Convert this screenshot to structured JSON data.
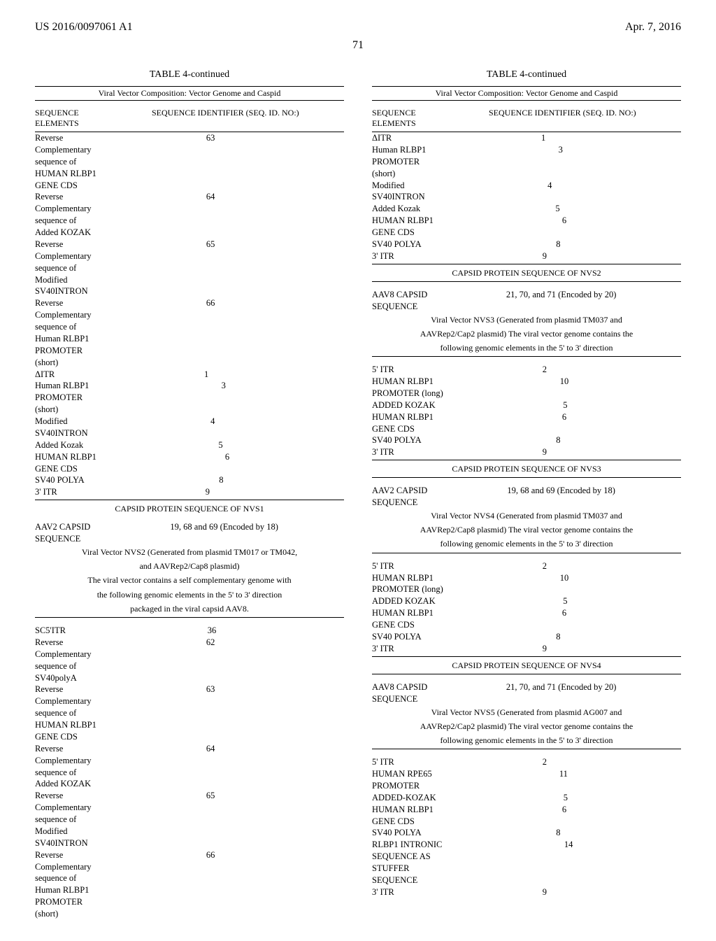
{
  "header": {
    "patent_number": "US 2016/0097061 A1",
    "date": "Apr. 7, 2016",
    "page_number": "71"
  },
  "left_column": {
    "table_title": "TABLE 4-continued",
    "table_subtitle": "Viral Vector Composition: Vector Genome and Caspid",
    "header_left_1": "SEQUENCE",
    "header_left_2": "ELEMENTS",
    "header_right": "SEQUENCE IDENTIFIER (SEQ. ID. NO:)",
    "rows_a": [
      {
        "l": "Reverse",
        "r": "63"
      },
      {
        "l": "Complementary",
        "r": ""
      },
      {
        "l": "sequence of",
        "r": ""
      },
      {
        "l": "HUMAN RLBP1",
        "r": ""
      },
      {
        "l": "GENE CDS",
        "r": ""
      },
      {
        "l": "Reverse",
        "r": "64"
      },
      {
        "l": "Complementary",
        "r": ""
      },
      {
        "l": "sequence of",
        "r": ""
      },
      {
        "l": "Added KOZAK",
        "r": ""
      },
      {
        "l": "Reverse",
        "r": "65"
      },
      {
        "l": "Complementary",
        "r": ""
      },
      {
        "l": "sequence of",
        "r": ""
      },
      {
        "l": "Modified",
        "r": ""
      },
      {
        "l": "SV40INTRON",
        "r": ""
      },
      {
        "l": "Reverse",
        "r": "66"
      },
      {
        "l": "Complementary",
        "r": ""
      },
      {
        "l": "sequence of",
        "r": ""
      },
      {
        "l": "Human RLBP1",
        "r": ""
      },
      {
        "l": "PROMOTER",
        "r": ""
      },
      {
        "l": "(short)",
        "r": ""
      },
      {
        "l": "ΔITR",
        "r": "1"
      },
      {
        "l": "Human RLBP1",
        "r": "3"
      },
      {
        "l": "PROMOTER",
        "r": ""
      },
      {
        "l": "(short)",
        "r": ""
      },
      {
        "l": "Modified",
        "r": "4"
      },
      {
        "l": "SV40INTRON",
        "r": ""
      },
      {
        "l": "Added Kozak",
        "r": "5"
      },
      {
        "l": "HUMAN RLBP1",
        "r": "6"
      },
      {
        "l": "GENE CDS",
        "r": ""
      },
      {
        "l": "SV40 POLYA",
        "r": "8"
      },
      {
        "l": "3' ITR",
        "r": "9"
      }
    ],
    "capsid_a": "CAPSID PROTEIN SEQUENCE OF NVS1",
    "aav2_row": {
      "l": "AAV2 CAPSID",
      "r": "19, 68 and 69 (Encoded by 18)"
    },
    "aav2_row2": {
      "l": "SEQUENCE",
      "r": ""
    },
    "note_b_1": "Viral Vector NVS2 (Generated from plasmid TM017 or TM042,",
    "note_b_2": "and AAVRep2/Cap8 plasmid)",
    "note_b_3": "The viral vector contains a self complementary genome with",
    "note_b_4": "the following genomic elements in the 5' to 3' direction",
    "note_b_5": "packaged in the viral capsid AAV8.",
    "rows_b": [
      {
        "l": "SC5'ITR",
        "r": "36"
      },
      {
        "l": "Reverse",
        "r": "62"
      },
      {
        "l": "Complementary",
        "r": ""
      },
      {
        "l": "sequence of",
        "r": ""
      },
      {
        "l": "SV40polyA",
        "r": ""
      },
      {
        "l": "Reverse",
        "r": "63"
      },
      {
        "l": "Complementary",
        "r": ""
      },
      {
        "l": "sequence of",
        "r": ""
      },
      {
        "l": "HUMAN RLBP1",
        "r": ""
      },
      {
        "l": "GENE CDS",
        "r": ""
      },
      {
        "l": "Reverse",
        "r": "64"
      },
      {
        "l": "Complementary",
        "r": ""
      },
      {
        "l": "sequence of",
        "r": ""
      },
      {
        "l": "Added KOZAK",
        "r": ""
      },
      {
        "l": "Reverse",
        "r": "65"
      },
      {
        "l": "Complementary",
        "r": ""
      },
      {
        "l": "sequence of",
        "r": ""
      },
      {
        "l": "Modified",
        "r": ""
      },
      {
        "l": "SV40INTRON",
        "r": ""
      },
      {
        "l": "Reverse",
        "r": "66"
      },
      {
        "l": "Complementary",
        "r": ""
      },
      {
        "l": "sequence of",
        "r": ""
      },
      {
        "l": "Human RLBP1",
        "r": ""
      },
      {
        "l": "PROMOTER",
        "r": ""
      },
      {
        "l": "(short)",
        "r": ""
      }
    ]
  },
  "right_column": {
    "table_title": "TABLE 4-continued",
    "table_subtitle": "Viral Vector Composition: Vector Genome and Caspid",
    "header_left_1": "SEQUENCE",
    "header_left_2": "ELEMENTS",
    "header_right": "SEQUENCE IDENTIFIER (SEQ. ID. NO:)",
    "rows_a": [
      {
        "l": "ΔITR",
        "r": "1"
      },
      {
        "l": "Human RLBP1",
        "r": "3"
      },
      {
        "l": "PROMOTER",
        "r": ""
      },
      {
        "l": "(short)",
        "r": ""
      },
      {
        "l": "Modified",
        "r": "4"
      },
      {
        "l": "SV40INTRON",
        "r": ""
      },
      {
        "l": "Added Kozak",
        "r": "5"
      },
      {
        "l": "HUMAN RLBP1",
        "r": "6"
      },
      {
        "l": "GENE CDS",
        "r": ""
      },
      {
        "l": "SV40 POLYA",
        "r": "8"
      },
      {
        "l": "3' ITR",
        "r": "9"
      }
    ],
    "capsid_a": "CAPSID PROTEIN SEQUENCE OF NVS2",
    "aav8_row_1": {
      "l": "AAV8 CAPSID",
      "r": "21, 70, and 71 (Encoded by 20)"
    },
    "aav8_row_2": {
      "l": "SEQUENCE",
      "r": ""
    },
    "note_b_1": "Viral Vector NVS3 (Generated from plasmid TM037 and",
    "note_b_2": "AAVRep2/Cap2 plasmid) The viral vector genome contains the",
    "note_b_3": "following genomic elements in the 5' to 3' direction",
    "rows_b": [
      {
        "l": "5' ITR",
        "r": "2"
      },
      {
        "l": "HUMAN RLBP1",
        "r": "10"
      },
      {
        "l": "PROMOTER (long)",
        "r": ""
      },
      {
        "l": "ADDED KOZAK",
        "r": "5"
      },
      {
        "l": "HUMAN RLBP1",
        "r": "6"
      },
      {
        "l": "GENE CDS",
        "r": ""
      },
      {
        "l": "SV40 POLYA",
        "r": "8"
      },
      {
        "l": "3' ITR",
        "r": "9"
      }
    ],
    "capsid_b": "CAPSID PROTEIN SEQUENCE OF NVS3",
    "aav2_row_c1": {
      "l": "AAV2 CAPSID",
      "r": "19, 68 and 69 (Encoded by 18)"
    },
    "aav2_row_c2": {
      "l": "SEQUENCE",
      "r": ""
    },
    "note_c_1": "Viral Vector NVS4 (Generated from plasmid TM037 and",
    "note_c_2": "AAVRep2/Cap8 plasmid) The viral vector genome contains the",
    "note_c_3": "following genomic elements in the 5' to 3' direction",
    "rows_c": [
      {
        "l": "5' ITR",
        "r": "2"
      },
      {
        "l": "HUMAN RLBP1",
        "r": "10"
      },
      {
        "l": "PROMOTER (long)",
        "r": ""
      },
      {
        "l": "ADDED KOZAK",
        "r": "5"
      },
      {
        "l": "HUMAN RLBP1",
        "r": "6"
      },
      {
        "l": "GENE CDS",
        "r": ""
      },
      {
        "l": "SV40 POLYA",
        "r": "8"
      },
      {
        "l": "3' ITR",
        "r": "9"
      }
    ],
    "capsid_c": "CAPSID PROTEIN SEQUENCE OF NVS4",
    "aav8_row_d1": {
      "l": "AAV8 CAPSID",
      "r": "21, 70, and 71 (Encoded by 20)"
    },
    "aav8_row_d2": {
      "l": "SEQUENCE",
      "r": ""
    },
    "note_d_1": "Viral Vector NVS5 (Generated from plasmid AG007 and",
    "note_d_2": "AAVRep2/Cap2 plasmid) The viral vector genome contains the",
    "note_d_3": "following genomic elements in the 5' to 3' direction",
    "rows_d": [
      {
        "l": "5' ITR",
        "r": "2"
      },
      {
        "l": "HUMAN RPE65",
        "r": "11"
      },
      {
        "l": "PROMOTER",
        "r": ""
      },
      {
        "l": "ADDED-KOZAK",
        "r": "5"
      },
      {
        "l": "HUMAN RLBP1",
        "r": "6"
      },
      {
        "l": "GENE CDS",
        "r": ""
      },
      {
        "l": "SV40 POLYA",
        "r": "8"
      },
      {
        "l": "RLBP1 INTRONIC",
        "r": "14"
      },
      {
        "l": "SEQUENCE AS",
        "r": ""
      },
      {
        "l": "STUFFER",
        "r": ""
      },
      {
        "l": "SEQUENCE",
        "r": ""
      },
      {
        "l": "3' ITR",
        "r": "9"
      }
    ]
  }
}
